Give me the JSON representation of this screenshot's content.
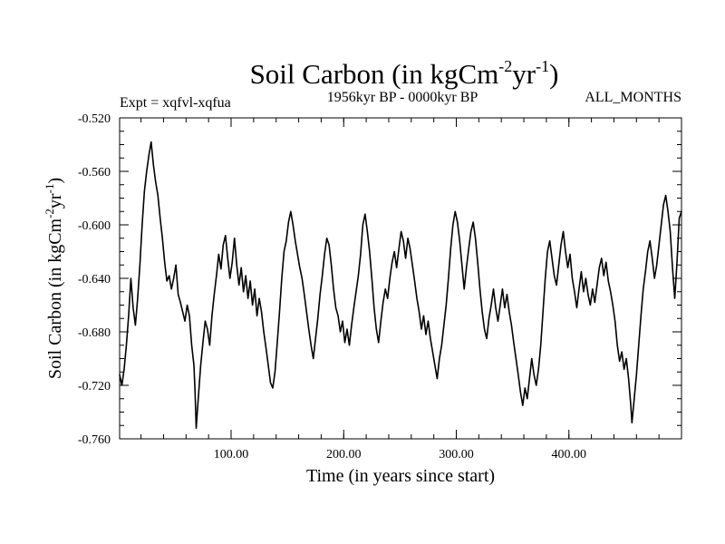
{
  "chart_data": {
    "type": "line",
    "title": {
      "main": "Soil Carbon (in kgCm",
      "sup1": "-2",
      "mid": "yr",
      "sup2": "-1",
      "end": ")"
    },
    "subtitle": "1956kyr BP - 0000kyr BP",
    "experiment_label": "Expt = xqfvl-xqfua",
    "months_label": "ALL_MONTHS",
    "xlabel": "Time (in years since start)",
    "ylabel": {
      "main": "Soil Carbon (in kgCm",
      "sup1": "-2",
      "mid": "yr",
      "sup2": "-1",
      "end": ")"
    },
    "xlim": [
      1,
      500
    ],
    "ylim": [
      -0.76,
      -0.52
    ],
    "xticks": [
      100,
      200,
      300,
      400
    ],
    "xtick_labels": [
      "100.00",
      "200.00",
      "300.00",
      "400.00"
    ],
    "yticks": [
      -0.52,
      -0.56,
      -0.6,
      -0.64,
      -0.68,
      -0.72,
      -0.76
    ],
    "ytick_labels": [
      "-0.520",
      "-0.560",
      "-0.600",
      "-0.640",
      "-0.680",
      "-0.720",
      "-0.760"
    ],
    "grid": false,
    "series": [
      {
        "color": "#000000",
        "points": [
          [
            1,
            -0.712
          ],
          [
            3,
            -0.72
          ],
          [
            5,
            -0.708
          ],
          [
            7,
            -0.69
          ],
          [
            9,
            -0.668
          ],
          [
            11,
            -0.64
          ],
          [
            13,
            -0.662
          ],
          [
            15,
            -0.675
          ],
          [
            17,
            -0.655
          ],
          [
            19,
            -0.63
          ],
          [
            21,
            -0.6
          ],
          [
            23,
            -0.575
          ],
          [
            25,
            -0.56
          ],
          [
            27,
            -0.548
          ],
          [
            29,
            -0.538
          ],
          [
            31,
            -0.555
          ],
          [
            33,
            -0.568
          ],
          [
            35,
            -0.578
          ],
          [
            37,
            -0.595
          ],
          [
            39,
            -0.61
          ],
          [
            41,
            -0.628
          ],
          [
            43,
            -0.642
          ],
          [
            45,
            -0.638
          ],
          [
            47,
            -0.648
          ],
          [
            49,
            -0.64
          ],
          [
            51,
            -0.63
          ],
          [
            53,
            -0.652
          ],
          [
            55,
            -0.658
          ],
          [
            57,
            -0.665
          ],
          [
            59,
            -0.672
          ],
          [
            61,
            -0.66
          ],
          [
            63,
            -0.668
          ],
          [
            65,
            -0.69
          ],
          [
            67,
            -0.705
          ],
          [
            68,
            -0.725
          ],
          [
            69,
            -0.752
          ],
          [
            71,
            -0.728
          ],
          [
            73,
            -0.705
          ],
          [
            75,
            -0.688
          ],
          [
            77,
            -0.672
          ],
          [
            79,
            -0.678
          ],
          [
            81,
            -0.69
          ],
          [
            83,
            -0.668
          ],
          [
            85,
            -0.652
          ],
          [
            87,
            -0.638
          ],
          [
            89,
            -0.622
          ],
          [
            91,
            -0.633
          ],
          [
            93,
            -0.615
          ],
          [
            95,
            -0.608
          ],
          [
            97,
            -0.625
          ],
          [
            99,
            -0.64
          ],
          [
            101,
            -0.628
          ],
          [
            103,
            -0.61
          ],
          [
            105,
            -0.63
          ],
          [
            107,
            -0.645
          ],
          [
            109,
            -0.632
          ],
          [
            111,
            -0.65
          ],
          [
            113,
            -0.638
          ],
          [
            115,
            -0.655
          ],
          [
            117,
            -0.642
          ],
          [
            119,
            -0.66
          ],
          [
            121,
            -0.648
          ],
          [
            123,
            -0.668
          ],
          [
            125,
            -0.655
          ],
          [
            127,
            -0.665
          ],
          [
            129,
            -0.68
          ],
          [
            131,
            -0.692
          ],
          [
            133,
            -0.705
          ],
          [
            135,
            -0.718
          ],
          [
            137,
            -0.722
          ],
          [
            139,
            -0.71
          ],
          [
            141,
            -0.688
          ],
          [
            143,
            -0.665
          ],
          [
            145,
            -0.64
          ],
          [
            147,
            -0.62
          ],
          [
            149,
            -0.612
          ],
          [
            151,
            -0.598
          ],
          [
            153,
            -0.59
          ],
          [
            155,
            -0.6
          ],
          [
            157,
            -0.612
          ],
          [
            159,
            -0.622
          ],
          [
            161,
            -0.632
          ],
          [
            163,
            -0.64
          ],
          [
            165,
            -0.652
          ],
          [
            167,
            -0.665
          ],
          [
            169,
            -0.678
          ],
          [
            171,
            -0.69
          ],
          [
            173,
            -0.7
          ],
          [
            175,
            -0.685
          ],
          [
            177,
            -0.67
          ],
          [
            179,
            -0.652
          ],
          [
            181,
            -0.638
          ],
          [
            183,
            -0.622
          ],
          [
            185,
            -0.61
          ],
          [
            187,
            -0.615
          ],
          [
            189,
            -0.63
          ],
          [
            191,
            -0.648
          ],
          [
            193,
            -0.662
          ],
          [
            195,
            -0.668
          ],
          [
            197,
            -0.68
          ],
          [
            199,
            -0.672
          ],
          [
            201,
            -0.688
          ],
          [
            203,
            -0.678
          ],
          [
            205,
            -0.69
          ],
          [
            207,
            -0.675
          ],
          [
            209,
            -0.662
          ],
          [
            211,
            -0.65
          ],
          [
            213,
            -0.638
          ],
          [
            215,
            -0.622
          ],
          [
            217,
            -0.6
          ],
          [
            219,
            -0.592
          ],
          [
            221,
            -0.605
          ],
          [
            223,
            -0.62
          ],
          [
            225,
            -0.64
          ],
          [
            227,
            -0.662
          ],
          [
            229,
            -0.678
          ],
          [
            231,
            -0.688
          ],
          [
            233,
            -0.672
          ],
          [
            235,
            -0.658
          ],
          [
            237,
            -0.648
          ],
          [
            239,
            -0.655
          ],
          [
            241,
            -0.64
          ],
          [
            243,
            -0.628
          ],
          [
            245,
            -0.62
          ],
          [
            247,
            -0.632
          ],
          [
            249,
            -0.618
          ],
          [
            251,
            -0.605
          ],
          [
            253,
            -0.612
          ],
          [
            255,
            -0.625
          ],
          [
            257,
            -0.61
          ],
          [
            259,
            -0.618
          ],
          [
            261,
            -0.63
          ],
          [
            263,
            -0.642
          ],
          [
            265,
            -0.655
          ],
          [
            267,
            -0.665
          ],
          [
            269,
            -0.678
          ],
          [
            271,
            -0.668
          ],
          [
            273,
            -0.682
          ],
          [
            275,
            -0.672
          ],
          [
            277,
            -0.685
          ],
          [
            279,
            -0.695
          ],
          [
            281,
            -0.705
          ],
          [
            283,
            -0.715
          ],
          [
            285,
            -0.7
          ],
          [
            287,
            -0.69
          ],
          [
            289,
            -0.675
          ],
          [
            291,
            -0.66
          ],
          [
            293,
            -0.64
          ],
          [
            295,
            -0.618
          ],
          [
            297,
            -0.6
          ],
          [
            299,
            -0.59
          ],
          [
            301,
            -0.598
          ],
          [
            303,
            -0.612
          ],
          [
            305,
            -0.63
          ],
          [
            307,
            -0.648
          ],
          [
            309,
            -0.632
          ],
          [
            311,
            -0.618
          ],
          [
            313,
            -0.605
          ],
          [
            315,
            -0.598
          ],
          [
            317,
            -0.61
          ],
          [
            319,
            -0.628
          ],
          [
            321,
            -0.648
          ],
          [
            323,
            -0.665
          ],
          [
            325,
            -0.678
          ],
          [
            327,
            -0.685
          ],
          [
            329,
            -0.67
          ],
          [
            331,
            -0.66
          ],
          [
            333,
            -0.648
          ],
          [
            335,
            -0.662
          ],
          [
            337,
            -0.672
          ],
          [
            339,
            -0.66
          ],
          [
            341,
            -0.648
          ],
          [
            343,
            -0.662
          ],
          [
            345,
            -0.652
          ],
          [
            347,
            -0.665
          ],
          [
            349,
            -0.675
          ],
          [
            351,
            -0.688
          ],
          [
            353,
            -0.7
          ],
          [
            355,
            -0.712
          ],
          [
            357,
            -0.725
          ],
          [
            359,
            -0.735
          ],
          [
            361,
            -0.722
          ],
          [
            363,
            -0.73
          ],
          [
            365,
            -0.715
          ],
          [
            367,
            -0.7
          ],
          [
            369,
            -0.712
          ],
          [
            371,
            -0.72
          ],
          [
            373,
            -0.708
          ],
          [
            375,
            -0.69
          ],
          [
            377,
            -0.665
          ],
          [
            379,
            -0.64
          ],
          [
            381,
            -0.62
          ],
          [
            383,
            -0.612
          ],
          [
            385,
            -0.625
          ],
          [
            387,
            -0.638
          ],
          [
            389,
            -0.645
          ],
          [
            391,
            -0.63
          ],
          [
            393,
            -0.615
          ],
          [
            395,
            -0.605
          ],
          [
            397,
            -0.62
          ],
          [
            399,
            -0.632
          ],
          [
            401,
            -0.622
          ],
          [
            403,
            -0.64
          ],
          [
            405,
            -0.65
          ],
          [
            407,
            -0.662
          ],
          [
            409,
            -0.648
          ],
          [
            411,
            -0.635
          ],
          [
            413,
            -0.65
          ],
          [
            415,
            -0.64
          ],
          [
            417,
            -0.652
          ],
          [
            419,
            -0.66
          ],
          [
            421,
            -0.648
          ],
          [
            423,
            -0.658
          ],
          [
            425,
            -0.645
          ],
          [
            427,
            -0.632
          ],
          [
            429,
            -0.625
          ],
          [
            431,
            -0.638
          ],
          [
            433,
            -0.628
          ],
          [
            435,
            -0.642
          ],
          [
            437,
            -0.65
          ],
          [
            439,
            -0.66
          ],
          [
            441,
            -0.672
          ],
          [
            443,
            -0.69
          ],
          [
            445,
            -0.702
          ],
          [
            447,
            -0.695
          ],
          [
            449,
            -0.708
          ],
          [
            451,
            -0.7
          ],
          [
            453,
            -0.715
          ],
          [
            455,
            -0.735
          ],
          [
            456,
            -0.748
          ],
          [
            458,
            -0.73
          ],
          [
            460,
            -0.712
          ],
          [
            462,
            -0.69
          ],
          [
            464,
            -0.668
          ],
          [
            466,
            -0.648
          ],
          [
            468,
            -0.635
          ],
          [
            470,
            -0.62
          ],
          [
            472,
            -0.612
          ],
          [
            474,
            -0.625
          ],
          [
            476,
            -0.64
          ],
          [
            478,
            -0.63
          ],
          [
            480,
            -0.615
          ],
          [
            482,
            -0.6
          ],
          [
            484,
            -0.585
          ],
          [
            486,
            -0.578
          ],
          [
            488,
            -0.59
          ],
          [
            490,
            -0.605
          ],
          [
            492,
            -0.632
          ],
          [
            494,
            -0.655
          ],
          [
            496,
            -0.628
          ],
          [
            498,
            -0.595
          ],
          [
            500,
            -0.59
          ]
        ]
      }
    ]
  }
}
